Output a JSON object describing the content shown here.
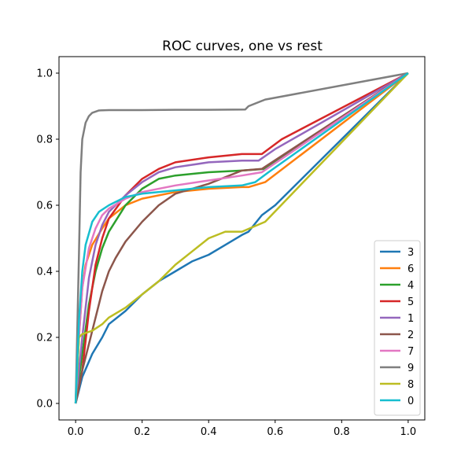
{
  "chart_data": {
    "type": "line",
    "title": "ROC curves, one vs rest",
    "xlabel": "",
    "ylabel": "",
    "xlim": [
      -0.05,
      1.05
    ],
    "ylim": [
      -0.05,
      1.05
    ],
    "xticks": [
      0.0,
      0.2,
      0.4,
      0.6,
      0.8,
      1.0
    ],
    "yticks": [
      0.0,
      0.2,
      0.4,
      0.6,
      0.8,
      1.0
    ],
    "xtick_labels": [
      "0.0",
      "0.2",
      "0.4",
      "0.6",
      "0.8",
      "1.0"
    ],
    "ytick_labels": [
      "0.0",
      "0.2",
      "0.4",
      "0.6",
      "0.8",
      "1.0"
    ],
    "grid": false,
    "legend_position": "lower-right",
    "series": [
      {
        "name": "3",
        "color": "#1f77b4",
        "x": [
          0.0,
          0.02,
          0.05,
          0.08,
          0.1,
          0.15,
          0.2,
          0.25,
          0.3,
          0.35,
          0.4,
          0.45,
          0.5,
          0.52,
          0.56,
          0.6,
          1.0
        ],
        "y": [
          0.0,
          0.08,
          0.15,
          0.2,
          0.24,
          0.28,
          0.33,
          0.37,
          0.4,
          0.43,
          0.45,
          0.48,
          0.51,
          0.52,
          0.57,
          0.6,
          1.0
        ]
      },
      {
        "name": "6",
        "color": "#ff7f0e",
        "x": [
          0.0,
          0.01,
          0.02,
          0.03,
          0.05,
          0.08,
          0.1,
          0.15,
          0.2,
          0.3,
          0.4,
          0.5,
          0.52,
          0.57,
          1.0
        ],
        "y": [
          0.0,
          0.2,
          0.35,
          0.42,
          0.48,
          0.53,
          0.56,
          0.6,
          0.62,
          0.64,
          0.65,
          0.655,
          0.655,
          0.67,
          1.0
        ]
      },
      {
        "name": "4",
        "color": "#2ca02c",
        "x": [
          0.0,
          0.02,
          0.04,
          0.06,
          0.08,
          0.1,
          0.15,
          0.2,
          0.25,
          0.3,
          0.4,
          0.5,
          0.57,
          1.0
        ],
        "y": [
          0.0,
          0.15,
          0.3,
          0.4,
          0.47,
          0.52,
          0.6,
          0.65,
          0.68,
          0.69,
          0.7,
          0.705,
          0.71,
          1.0
        ]
      },
      {
        "name": "5",
        "color": "#d62728",
        "x": [
          0.0,
          0.02,
          0.04,
          0.06,
          0.08,
          0.1,
          0.15,
          0.2,
          0.25,
          0.3,
          0.4,
          0.5,
          0.56,
          0.62,
          1.0
        ],
        "y": [
          0.0,
          0.1,
          0.28,
          0.42,
          0.5,
          0.56,
          0.63,
          0.68,
          0.71,
          0.73,
          0.745,
          0.755,
          0.755,
          0.8,
          1.0
        ]
      },
      {
        "name": "1",
        "color": "#9467bd",
        "x": [
          0.0,
          0.02,
          0.04,
          0.06,
          0.08,
          0.1,
          0.15,
          0.2,
          0.25,
          0.3,
          0.4,
          0.5,
          0.55,
          0.6,
          1.0
        ],
        "y": [
          0.0,
          0.2,
          0.38,
          0.48,
          0.54,
          0.58,
          0.63,
          0.67,
          0.7,
          0.715,
          0.73,
          0.735,
          0.735,
          0.77,
          1.0
        ]
      },
      {
        "name": "2",
        "color": "#8c564b",
        "x": [
          0.0,
          0.02,
          0.04,
          0.06,
          0.08,
          0.1,
          0.12,
          0.15,
          0.2,
          0.25,
          0.3,
          0.4,
          0.5,
          0.56,
          1.0
        ],
        "y": [
          0.0,
          0.1,
          0.18,
          0.26,
          0.34,
          0.4,
          0.44,
          0.49,
          0.55,
          0.6,
          0.635,
          0.665,
          0.705,
          0.71,
          1.0
        ]
      },
      {
        "name": "7",
        "color": "#e377c2",
        "x": [
          0.0,
          0.01,
          0.02,
          0.04,
          0.06,
          0.08,
          0.1,
          0.15,
          0.2,
          0.3,
          0.4,
          0.5,
          0.56,
          1.0
        ],
        "y": [
          0.0,
          0.2,
          0.35,
          0.47,
          0.53,
          0.57,
          0.59,
          0.62,
          0.64,
          0.66,
          0.675,
          0.69,
          0.7,
          1.0
        ]
      },
      {
        "name": "9",
        "color": "#7f7f7f",
        "x": [
          0.0,
          0.01,
          0.015,
          0.02,
          0.03,
          0.04,
          0.05,
          0.07,
          0.1,
          0.2,
          0.3,
          0.4,
          0.51,
          0.52,
          0.57,
          1.0
        ],
        "y": [
          0.0,
          0.45,
          0.7,
          0.8,
          0.85,
          0.87,
          0.88,
          0.887,
          0.888,
          0.888,
          0.889,
          0.889,
          0.89,
          0.9,
          0.92,
          1.0
        ]
      },
      {
        "name": "8",
        "color": "#bcbd22",
        "x": [
          0.0,
          0.01,
          0.02,
          0.05,
          0.08,
          0.1,
          0.15,
          0.2,
          0.25,
          0.3,
          0.35,
          0.4,
          0.45,
          0.5,
          0.57,
          1.0
        ],
        "y": [
          0.0,
          0.2,
          0.21,
          0.22,
          0.24,
          0.26,
          0.29,
          0.33,
          0.37,
          0.42,
          0.46,
          0.5,
          0.52,
          0.52,
          0.55,
          1.0
        ]
      },
      {
        "name": "0",
        "color": "#17becf",
        "x": [
          0.0,
          0.01,
          0.02,
          0.03,
          0.05,
          0.07,
          0.1,
          0.15,
          0.2,
          0.3,
          0.4,
          0.5,
          0.54,
          0.58,
          1.0
        ],
        "y": [
          0.0,
          0.25,
          0.4,
          0.48,
          0.55,
          0.58,
          0.6,
          0.625,
          0.635,
          0.645,
          0.655,
          0.66,
          0.67,
          0.7,
          1.0
        ]
      }
    ]
  }
}
